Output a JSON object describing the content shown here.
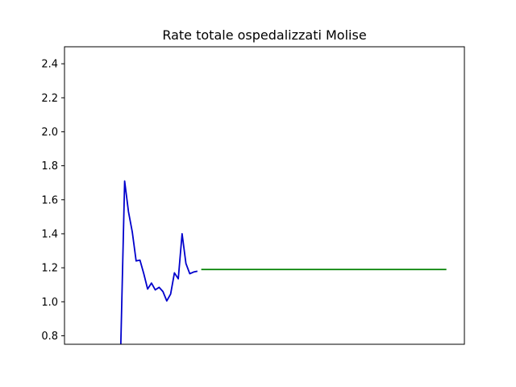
{
  "chart_data": {
    "type": "line",
    "title": "Rate totale ospedalizzati Molise",
    "xlabel": "",
    "ylabel": "",
    "x_ticks_visible": false,
    "xlim": [
      -4.7,
      99.7
    ],
    "ylim": [
      0.75,
      2.5
    ],
    "yticks": [
      0.8,
      1.0,
      1.2,
      1.4,
      1.6,
      1.8,
      2.0,
      2.2,
      2.4
    ],
    "grid": false,
    "legend": "none",
    "series": [
      {
        "color": "#0000cc",
        "x": [
          10,
          11,
          12,
          13,
          14,
          15,
          16,
          17,
          18,
          19,
          20,
          21,
          22,
          23,
          24,
          25,
          26,
          27,
          28,
          29,
          30
        ],
        "y": [
          0.75,
          1.71,
          1.53,
          1.41,
          1.24,
          1.245,
          1.165,
          1.075,
          1.11,
          1.07,
          1.085,
          1.06,
          1.005,
          1.045,
          1.17,
          1.135,
          1.4,
          1.225,
          1.165,
          1.175,
          1.18
        ]
      },
      {
        "color": "#008000",
        "x": [
          31,
          95
        ],
        "y": [
          1.19,
          1.19
        ]
      }
    ]
  }
}
